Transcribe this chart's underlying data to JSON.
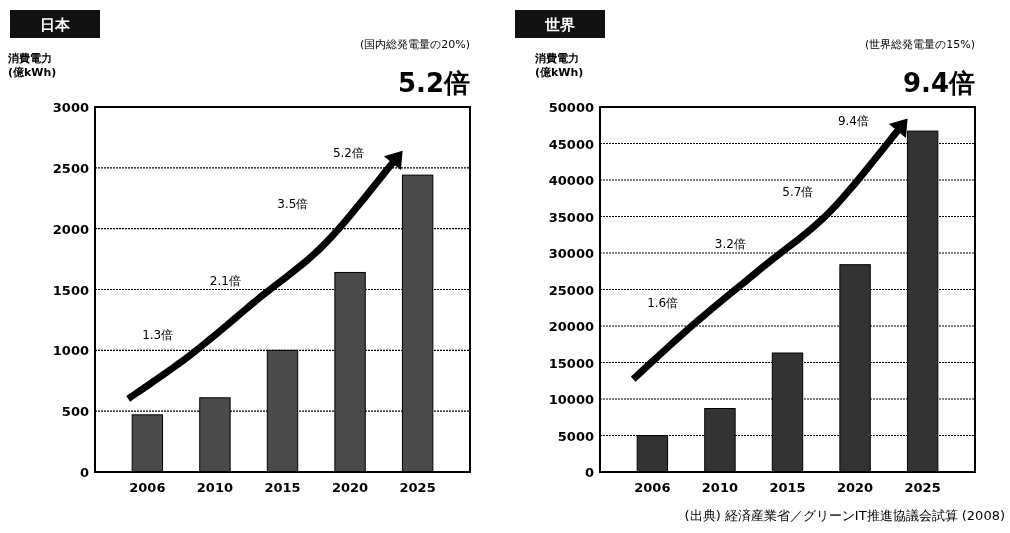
{
  "chart_data": [
    {
      "type": "bar",
      "title": "日本",
      "subtitle": "(国内総発電量の20%)",
      "ylabel": "消費電力\n(億kWh)",
      "categories": [
        "2006",
        "2010",
        "2015",
        "2020",
        "2025"
      ],
      "values": [
        470,
        610,
        1000,
        1640,
        2440
      ],
      "color": "#4a4a4a",
      "ylim": [
        0,
        3000
      ],
      "yticks": [
        0,
        500,
        1000,
        1500,
        2000,
        2500,
        3000
      ],
      "grid": "y",
      "annotations": [
        "5.2倍",
        "1.3倍",
        "2.1倍",
        "3.5倍",
        "5.2倍"
      ]
    },
    {
      "type": "bar",
      "title": "世界",
      "subtitle": "(世界総発電量の15%)",
      "ylabel": "消費電力\n(億kWh)",
      "categories": [
        "2006",
        "2010",
        "2015",
        "2020",
        "2025"
      ],
      "values": [
        5000,
        8700,
        16300,
        28400,
        46700
      ],
      "color": "#333333",
      "ylim": [
        0,
        50000
      ],
      "yticks": [
        0,
        5000,
        10000,
        15000,
        20000,
        25000,
        30000,
        35000,
        40000,
        45000,
        50000
      ],
      "grid": "y",
      "annotations": [
        "9.4倍",
        "1.6倍",
        "3.2倍",
        "5.7倍",
        "9.4倍",
        "(出典) 経済産業省／グリーンIT推進協議会試算 (2008)"
      ]
    }
  ]
}
